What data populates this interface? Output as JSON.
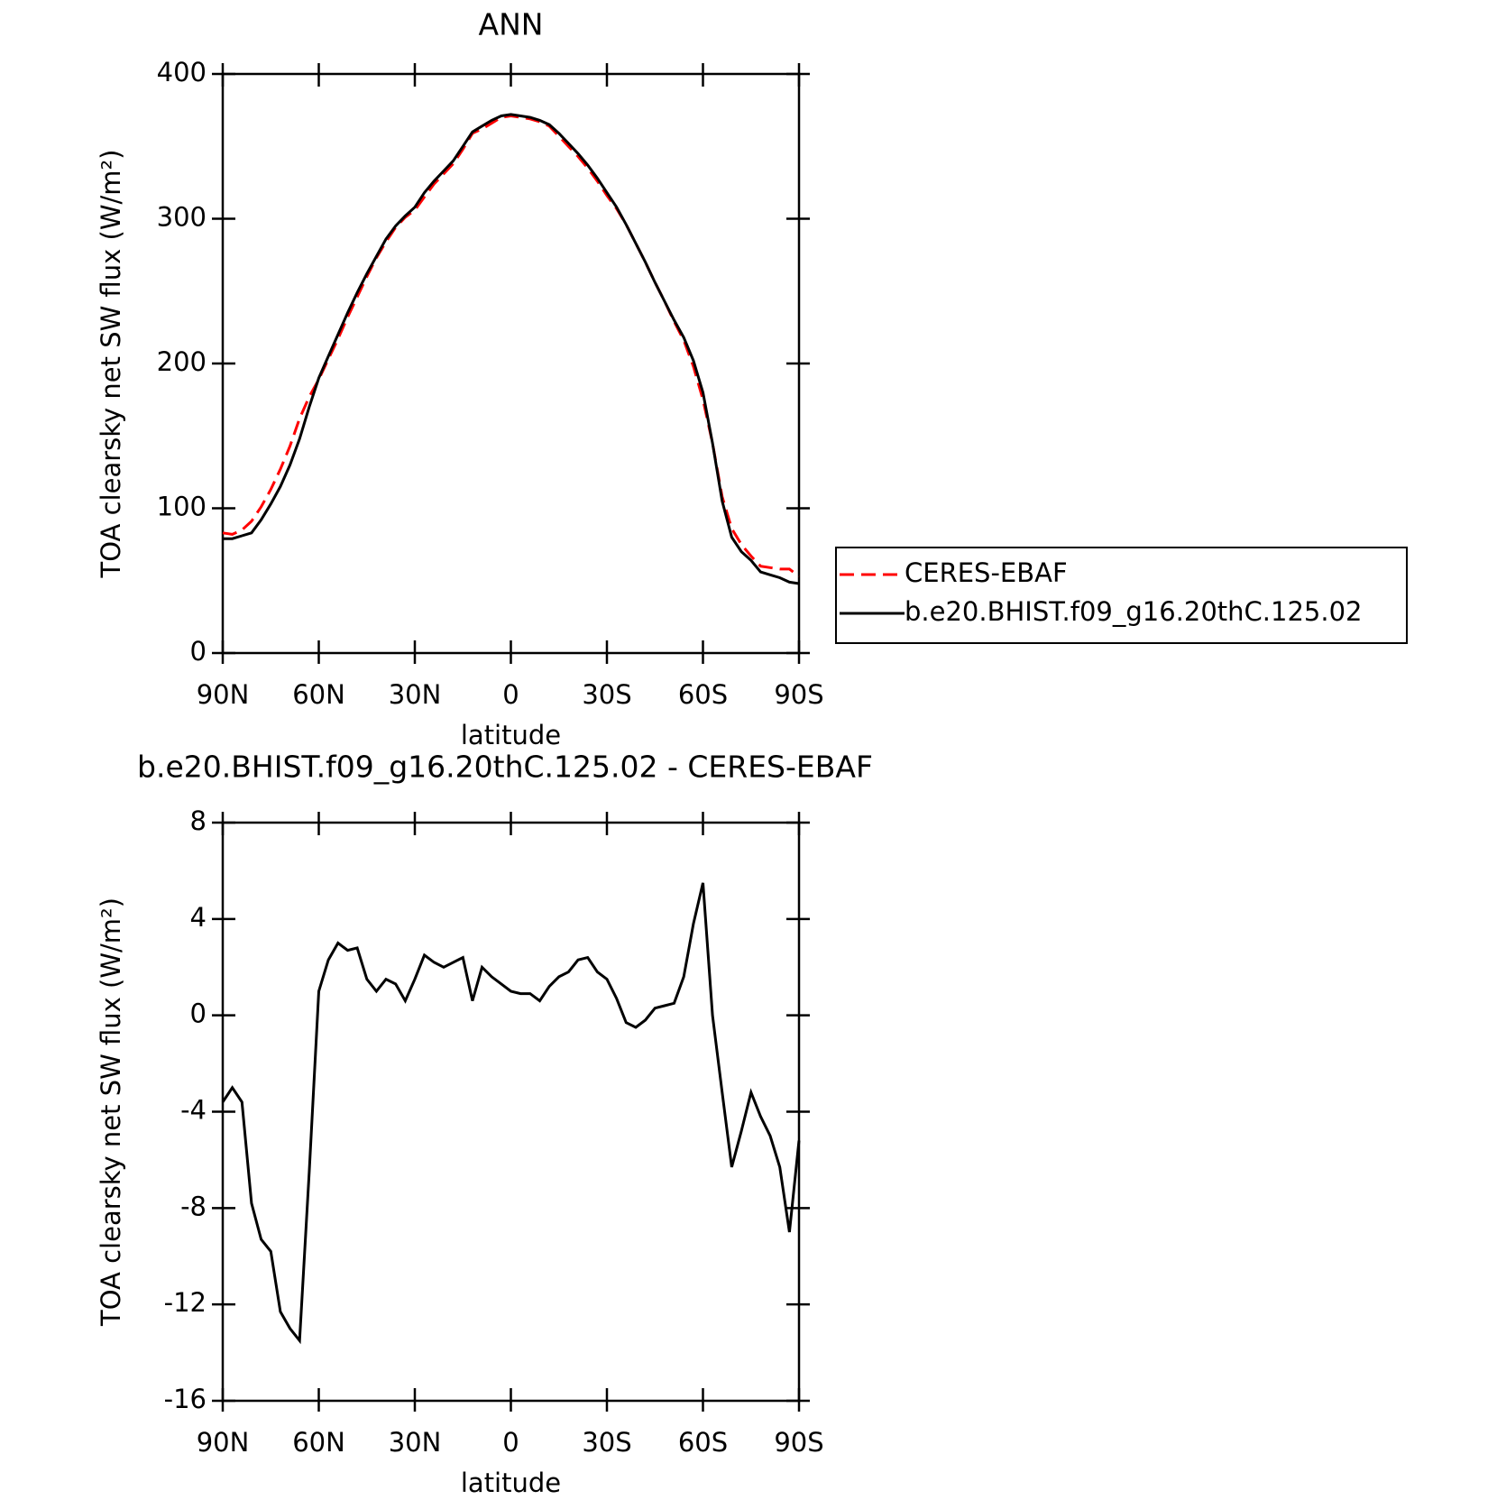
{
  "chart_data": [
    {
      "type": "line",
      "title": "ANN",
      "xlabel": "latitude",
      "ylabel": "TOA clearsky net SW flux (W/m²)",
      "x": [
        90,
        87,
        84,
        81,
        78,
        75,
        72,
        69,
        66,
        63,
        60,
        57,
        54,
        51,
        48,
        45,
        42,
        39,
        36,
        33,
        30,
        27,
        24,
        21,
        18,
        15,
        12,
        9,
        6,
        3,
        0,
        -3,
        -6,
        -9,
        -12,
        -15,
        -18,
        -21,
        -24,
        -27,
        -30,
        -33,
        -36,
        -39,
        -42,
        -45,
        -48,
        -51,
        -54,
        -57,
        -60,
        -63,
        -66,
        -69,
        -72,
        -75,
        -78,
        -81,
        -84,
        -87,
        -90
      ],
      "series": [
        {
          "name": "CERES-EBAF",
          "color": "#ff0000",
          "dash": true,
          "values": [
            83,
            82,
            85,
            91,
            101,
            113,
            127,
            143,
            162,
            177,
            189,
            203,
            217,
            232,
            246,
            260,
            273,
            284,
            294,
            301,
            306,
            315,
            324,
            331,
            338,
            348,
            359,
            362,
            366,
            370,
            371,
            370,
            369,
            367,
            364,
            357,
            350,
            343,
            335,
            326,
            316,
            307,
            296,
            283,
            270,
            256,
            243,
            229,
            216,
            198,
            175,
            145,
            108,
            86,
            75,
            67,
            60,
            59,
            58,
            58,
            53
          ]
        },
        {
          "name": "b.e20.BHIST.f09_g16.20thC.125.02",
          "color": "#000000",
          "dash": false,
          "values": [
            79,
            79,
            81,
            83,
            92,
            103,
            115,
            130,
            148,
            170,
            190,
            205,
            220,
            235,
            249,
            262,
            274,
            286,
            295,
            302,
            308,
            318,
            326,
            333,
            340,
            350,
            360,
            364,
            368,
            371,
            372,
            371,
            370,
            368,
            365,
            359,
            352,
            345,
            337,
            328,
            318,
            308,
            296,
            283,
            270,
            256,
            243,
            230,
            218,
            202,
            180,
            145,
            105,
            80,
            70,
            64,
            56,
            54,
            52,
            49,
            48
          ]
        }
      ],
      "xlim": [
        90,
        -90
      ],
      "xticks": [
        {
          "value": 90,
          "label": "90N"
        },
        {
          "value": 60,
          "label": "60N"
        },
        {
          "value": 30,
          "label": "30N"
        },
        0,
        {
          "value": -30,
          "label": "30S"
        },
        {
          "value": -60,
          "label": "60S"
        },
        {
          "value": -90,
          "label": "90S"
        }
      ],
      "ylim": [
        0,
        400
      ],
      "yticks": [
        0,
        100,
        200,
        300,
        400
      ],
      "legend": "right"
    },
    {
      "type": "line",
      "title": "b.e20.BHIST.f09_g16.20thC.125.02 - CERES-EBAF",
      "xlabel": "latitude",
      "ylabel": "TOA clearsky net SW flux (W/m²)",
      "x": [
        90,
        87,
        84,
        81,
        78,
        75,
        72,
        69,
        66,
        63,
        60,
        57,
        54,
        51,
        48,
        45,
        42,
        39,
        36,
        33,
        30,
        27,
        24,
        21,
        18,
        15,
        12,
        9,
        6,
        3,
        0,
        -3,
        -6,
        -9,
        -12,
        -15,
        -18,
        -21,
        -24,
        -27,
        -30,
        -33,
        -36,
        -39,
        -42,
        -45,
        -48,
        -51,
        -54,
        -57,
        -60,
        -63,
        -66,
        -69,
        -72,
        -75,
        -78,
        -81,
        -84,
        -87,
        -90
      ],
      "series": [
        {
          "color": "#000000",
          "dash": false,
          "values": [
            -3.6,
            -3.0,
            -3.6,
            -7.8,
            -9.3,
            -9.8,
            -12.3,
            -13.0,
            -13.5,
            -6.5,
            1.0,
            2.3,
            3.0,
            2.7,
            2.8,
            1.5,
            1.0,
            1.5,
            1.3,
            0.6,
            1.5,
            2.5,
            2.2,
            2.0,
            2.2,
            2.4,
            0.6,
            2.0,
            1.6,
            1.3,
            1.0,
            0.9,
            0.9,
            0.6,
            1.2,
            1.6,
            1.8,
            2.3,
            2.4,
            1.8,
            1.5,
            0.7,
            -0.3,
            -0.5,
            -0.2,
            0.3,
            0.4,
            0.5,
            1.6,
            3.8,
            5.5,
            0.0,
            -3.2,
            -6.3,
            -4.8,
            -3.2,
            -4.2,
            -5.0,
            -6.3,
            -9.0,
            -5.2
          ]
        }
      ],
      "xlim": [
        90,
        -90
      ],
      "xticks": [
        {
          "value": 90,
          "label": "90N"
        },
        {
          "value": 60,
          "label": "60N"
        },
        {
          "value": 30,
          "label": "30N"
        },
        0,
        {
          "value": -30,
          "label": "30S"
        },
        {
          "value": -60,
          "label": "60S"
        },
        {
          "value": -90,
          "label": "90S"
        }
      ],
      "ylim": [
        -16,
        8
      ],
      "yticks": [
        -16,
        -12,
        -8,
        -4,
        0,
        4,
        8
      ]
    }
  ]
}
